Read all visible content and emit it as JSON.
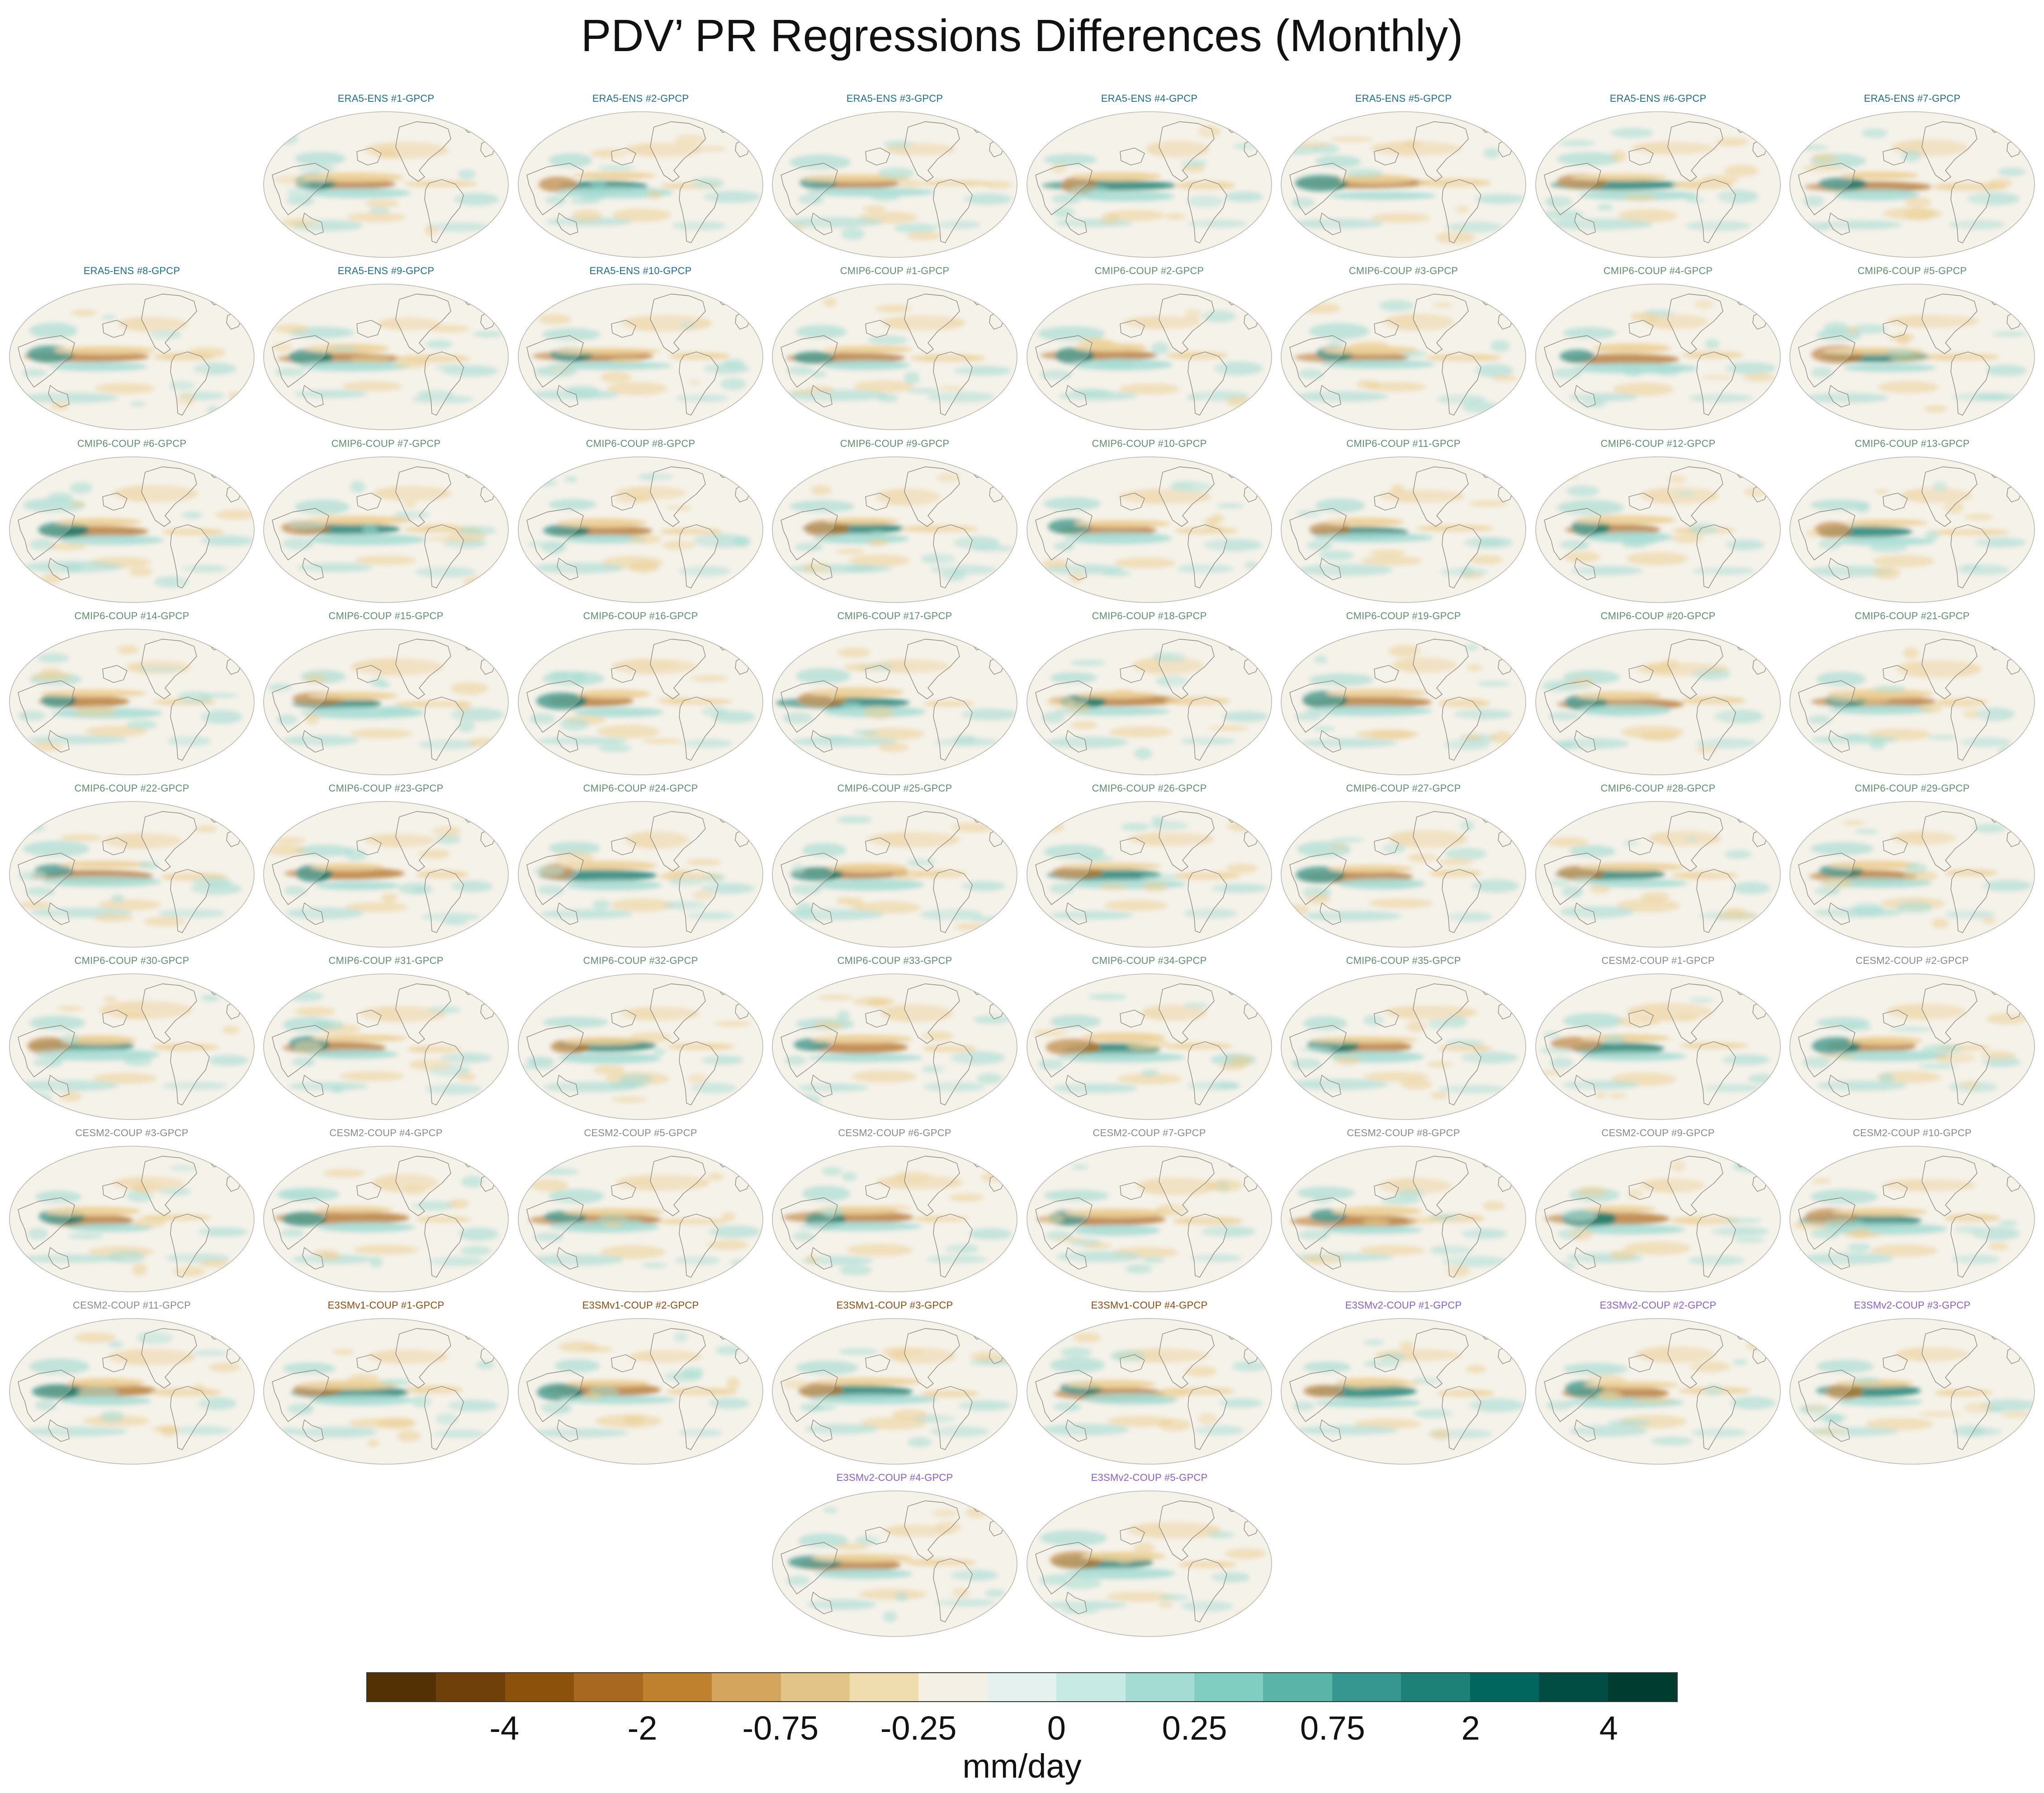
{
  "title": "PDV’ PR Regressions Differences (Monthly)",
  "group_colors": {
    "ERA5-ENS": "#1d6e8a",
    "CMIP6-COUP": "#5f8f6f",
    "CESM2-COUP": "#8a8a8a",
    "E3SMv1-COUP": "#8c4a12",
    "E3SMv2-COUP": "#8a5fc9"
  },
  "map_colors": {
    "ocean": "#f5f2ea",
    "land": "#f6f3ec",
    "border": "#b9b7b0",
    "coast": "#8a8880",
    "cool": "#0f7e70",
    "cool_light": "#a6dcd3",
    "warm": "#b5762a",
    "warm_light": "#eccf96"
  },
  "panels": [
    {
      "group": "ERA5-ENS",
      "label": "ERA5-ENS    #1-GPCP"
    },
    {
      "group": "ERA5-ENS",
      "label": "ERA5-ENS    #2-GPCP"
    },
    {
      "group": "ERA5-ENS",
      "label": "ERA5-ENS    #3-GPCP"
    },
    {
      "group": "ERA5-ENS",
      "label": "ERA5-ENS    #4-GPCP"
    },
    {
      "group": "ERA5-ENS",
      "label": "ERA5-ENS    #5-GPCP"
    },
    {
      "group": "ERA5-ENS",
      "label": "ERA5-ENS    #6-GPCP"
    },
    {
      "group": "ERA5-ENS",
      "label": "ERA5-ENS    #7-GPCP"
    },
    {
      "group": "ERA5-ENS",
      "label": "ERA5-ENS    #8-GPCP"
    },
    {
      "group": "ERA5-ENS",
      "label": "ERA5-ENS    #9-GPCP"
    },
    {
      "group": "ERA5-ENS",
      "label": "ERA5-ENS    #10-GPCP"
    },
    {
      "group": "CMIP6-COUP",
      "label": "CMIP6-COUP   #1-GPCP"
    },
    {
      "group": "CMIP6-COUP",
      "label": "CMIP6-COUP   #2-GPCP"
    },
    {
      "group": "CMIP6-COUP",
      "label": "CMIP6-COUP   #3-GPCP"
    },
    {
      "group": "CMIP6-COUP",
      "label": "CMIP6-COUP   #4-GPCP"
    },
    {
      "group": "CMIP6-COUP",
      "label": "CMIP6-COUP   #5-GPCP"
    },
    {
      "group": "CMIP6-COUP",
      "label": "CMIP6-COUP   #6-GPCP"
    },
    {
      "group": "CMIP6-COUP",
      "label": "CMIP6-COUP   #7-GPCP"
    },
    {
      "group": "CMIP6-COUP",
      "label": "CMIP6-COUP   #8-GPCP"
    },
    {
      "group": "CMIP6-COUP",
      "label": "CMIP6-COUP   #9-GPCP"
    },
    {
      "group": "CMIP6-COUP",
      "label": "CMIP6-COUP   #10-GPCP"
    },
    {
      "group": "CMIP6-COUP",
      "label": "CMIP6-COUP   #11-GPCP"
    },
    {
      "group": "CMIP6-COUP",
      "label": "CMIP6-COUP   #12-GPCP"
    },
    {
      "group": "CMIP6-COUP",
      "label": "CMIP6-COUP   #13-GPCP"
    },
    {
      "group": "CMIP6-COUP",
      "label": "CMIP6-COUP   #14-GPCP"
    },
    {
      "group": "CMIP6-COUP",
      "label": "CMIP6-COUP   #15-GPCP"
    },
    {
      "group": "CMIP6-COUP",
      "label": "CMIP6-COUP   #16-GPCP"
    },
    {
      "group": "CMIP6-COUP",
      "label": "CMIP6-COUP   #17-GPCP"
    },
    {
      "group": "CMIP6-COUP",
      "label": "CMIP6-COUP   #18-GPCP"
    },
    {
      "group": "CMIP6-COUP",
      "label": "CMIP6-COUP   #19-GPCP"
    },
    {
      "group": "CMIP6-COUP",
      "label": "CMIP6-COUP   #20-GPCP"
    },
    {
      "group": "CMIP6-COUP",
      "label": "CMIP6-COUP   #21-GPCP"
    },
    {
      "group": "CMIP6-COUP",
      "label": "CMIP6-COUP   #22-GPCP"
    },
    {
      "group": "CMIP6-COUP",
      "label": "CMIP6-COUP   #23-GPCP"
    },
    {
      "group": "CMIP6-COUP",
      "label": "CMIP6-COUP   #24-GPCP"
    },
    {
      "group": "CMIP6-COUP",
      "label": "CMIP6-COUP   #25-GPCP"
    },
    {
      "group": "CMIP6-COUP",
      "label": "CMIP6-COUP   #26-GPCP"
    },
    {
      "group": "CMIP6-COUP",
      "label": "CMIP6-COUP   #27-GPCP"
    },
    {
      "group": "CMIP6-COUP",
      "label": "CMIP6-COUP   #28-GPCP"
    },
    {
      "group": "CMIP6-COUP",
      "label": "CMIP6-COUP   #29-GPCP"
    },
    {
      "group": "CMIP6-COUP",
      "label": "CMIP6-COUP   #30-GPCP"
    },
    {
      "group": "CMIP6-COUP",
      "label": "CMIP6-COUP   #31-GPCP"
    },
    {
      "group": "CMIP6-COUP",
      "label": "CMIP6-COUP   #32-GPCP"
    },
    {
      "group": "CMIP6-COUP",
      "label": "CMIP6-COUP   #33-GPCP"
    },
    {
      "group": "CMIP6-COUP",
      "label": "CMIP6-COUP   #34-GPCP"
    },
    {
      "group": "CMIP6-COUP",
      "label": "CMIP6-COUP   #35-GPCP"
    },
    {
      "group": "CESM2-COUP",
      "label": "CESM2-COUP   #1-GPCP"
    },
    {
      "group": "CESM2-COUP",
      "label": "CESM2-COUP   #2-GPCP"
    },
    {
      "group": "CESM2-COUP",
      "label": "CESM2-COUP   #3-GPCP"
    },
    {
      "group": "CESM2-COUP",
      "label": "CESM2-COUP   #4-GPCP"
    },
    {
      "group": "CESM2-COUP",
      "label": "CESM2-COUP   #5-GPCP"
    },
    {
      "group": "CESM2-COUP",
      "label": "CESM2-COUP   #6-GPCP"
    },
    {
      "group": "CESM2-COUP",
      "label": "CESM2-COUP   #7-GPCP"
    },
    {
      "group": "CESM2-COUP",
      "label": "CESM2-COUP   #8-GPCP"
    },
    {
      "group": "CESM2-COUP",
      "label": "CESM2-COUP   #9-GPCP"
    },
    {
      "group": "CESM2-COUP",
      "label": "CESM2-COUP   #10-GPCP"
    },
    {
      "group": "CESM2-COUP",
      "label": "CESM2-COUP   #11-GPCP"
    },
    {
      "group": "E3SMv1-COUP",
      "label": "E3SMv1-COUP #1-GPCP"
    },
    {
      "group": "E3SMv1-COUP",
      "label": "E3SMv1-COUP #2-GPCP"
    },
    {
      "group": "E3SMv1-COUP",
      "label": "E3SMv1-COUP #3-GPCP"
    },
    {
      "group": "E3SMv1-COUP",
      "label": "E3SMv1-COUP #4-GPCP"
    },
    {
      "group": "E3SMv2-COUP",
      "label": "E3SMv2-COUP #1-GPCP"
    },
    {
      "group": "E3SMv2-COUP",
      "label": "E3SMv2-COUP #2-GPCP"
    },
    {
      "group": "E3SMv2-COUP",
      "label": "E3SMv2-COUP #3-GPCP"
    },
    {
      "group": "E3SMv2-COUP",
      "label": "E3SMv2-COUP #4-GPCP"
    },
    {
      "group": "E3SMv2-COUP",
      "label": "E3SMv2-COUP #5-GPCP"
    }
  ],
  "colorbar": {
    "units": "mm/day",
    "colors": [
      "#543005",
      "#6f4009",
      "#8c510a",
      "#a9681f",
      "#bf812d",
      "#d4a55c",
      "#e2c388",
      "#efddb0",
      "#f5f0e6",
      "#e4f1ee",
      "#c7eae5",
      "#a4dcd3",
      "#80cdc1",
      "#5ab4a8",
      "#35978f",
      "#1d8178",
      "#01665e",
      "#014d43",
      "#003c30"
    ],
    "ticks": [
      {
        "label": "-4",
        "slot": 2
      },
      {
        "label": "-2",
        "slot": 4
      },
      {
        "label": "-0.75",
        "slot": 6
      },
      {
        "label": "-0.25",
        "slot": 8
      },
      {
        "label": "0",
        "slot": 10
      },
      {
        "label": "0.25",
        "slot": 12
      },
      {
        "label": "0.75",
        "slot": 14
      },
      {
        "label": "2",
        "slot": 16
      },
      {
        "label": "4",
        "slot": 18
      }
    ]
  }
}
